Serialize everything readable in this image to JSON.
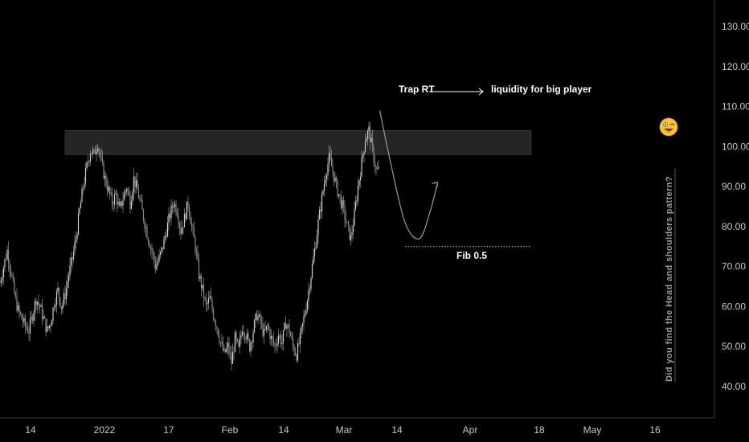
{
  "chart_data": {
    "type": "candlestick",
    "y_axis": {
      "ticks": [
        "40.00",
        "50.00",
        "60.00",
        "70.00",
        "80.00",
        "90.00",
        "100.00",
        "110.00",
        "120.00",
        "130.00"
      ],
      "ylim": [
        33,
        138
      ],
      "position": "right"
    },
    "x_axis": {
      "ticks": [
        "14",
        "2022",
        "17",
        "Feb",
        "14",
        "Mar",
        "14",
        "Apr",
        "18",
        "May",
        "16"
      ]
    },
    "series": [
      {
        "close": [
          66,
          70,
          74,
          69,
          63,
          59,
          57,
          55,
          54,
          58,
          62,
          60,
          57,
          54,
          56,
          61,
          64,
          60,
          63,
          68,
          72,
          77,
          84,
          90,
          95,
          99,
          98,
          101,
          96,
          92,
          89,
          86,
          88,
          84,
          87,
          90,
          86,
          92,
          89,
          85,
          81,
          77,
          74,
          70,
          72,
          75,
          79,
          83,
          86,
          84,
          79,
          82,
          86,
          80,
          75,
          68,
          64,
          60,
          62,
          58,
          55,
          51,
          48,
          50,
          46,
          52,
          49,
          55,
          53,
          50,
          54,
          58,
          56,
          53,
          55,
          52,
          50,
          53,
          51,
          56,
          54,
          50,
          48,
          52,
          57,
          62,
          68,
          74,
          81,
          87,
          93,
          97,
          94,
          90,
          87,
          84,
          80,
          77,
          83,
          90,
          96,
          102,
          104,
          99,
          94
        ]
      }
    ],
    "zone": {
      "from": 98,
      "to": 104
    },
    "fib_level": 75,
    "projection": [
      [
        105,
        109
      ],
      [
        108,
        96
      ],
      [
        112,
        81
      ],
      [
        116,
        77
      ],
      [
        119,
        84
      ],
      [
        121,
        91
      ]
    ],
    "annotations": {
      "trap": "Trap RT",
      "liquidity": "liquidity for big player",
      "fib": "Fib 0.5",
      "vertical": "Did you find the Head and shoulders pattern?"
    },
    "emoji": "winking-tongue-face",
    "colors": {
      "background": "#000000",
      "candles": "#a9a9a9",
      "zone": "#2b2b2b",
      "projection": "#9a9a9a",
      "text": "#ffffff",
      "axis_text": "#c8c8c8",
      "axis_line": "#3a3a3a"
    }
  }
}
